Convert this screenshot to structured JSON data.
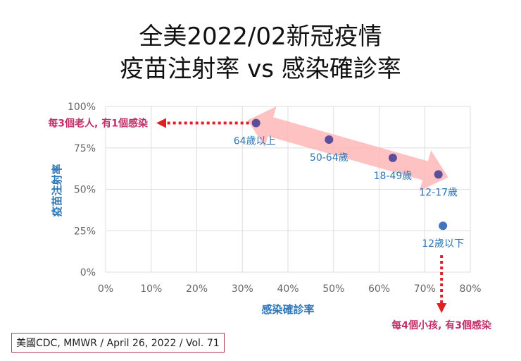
{
  "title_line1": "全美2022/02新冠疫情",
  "title_line2": "疫苗注射率 vs 感染確診率",
  "source": "美國CDC, MMWR / April 26, 2022 / Vol. 71",
  "annotations": {
    "elderly": "每3個老人, 有1個感染",
    "children": "每4個小孩, 有3個感染"
  },
  "colors": {
    "point": "#5b4f9c",
    "point_last": "#4472c4",
    "label": "#2e75b6",
    "annotation": "#c0306a",
    "arrow": "#e02020",
    "band": "#ffb3b3"
  },
  "chart_data": {
    "type": "scatter",
    "xlabel": "感染確診率",
    "ylabel": "疫苗注射率",
    "xlim": [
      0,
      80
    ],
    "ylim": [
      0,
      100
    ],
    "xticks": [
      "0%",
      "10%",
      "20%",
      "30%",
      "40%",
      "50%",
      "60%",
      "70%",
      "80%"
    ],
    "yticks": [
      "0%",
      "25%",
      "50%",
      "75%",
      "100%"
    ],
    "grid": true,
    "points": [
      {
        "label": "64歲以上",
        "x": 33,
        "y": 90
      },
      {
        "label": "50-64歲",
        "x": 49,
        "y": 80
      },
      {
        "label": "18-49歲",
        "x": 63,
        "y": 69
      },
      {
        "label": "12-17歲",
        "x": 73,
        "y": 59
      },
      {
        "label": "12歲以下",
        "x": 74,
        "y": 28
      }
    ]
  }
}
